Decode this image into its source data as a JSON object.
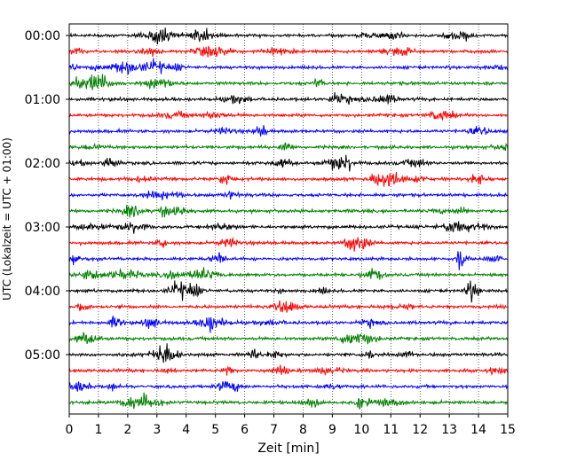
{
  "chart_data": {
    "type": "line",
    "title": "",
    "xlabel": "Zeit  [min]",
    "ylabel": "UTC (Lokalzeit = UTC + 01:00)",
    "xlim": [
      0,
      15
    ],
    "x_ticks": [
      0,
      1,
      2,
      3,
      4,
      5,
      6,
      7,
      8,
      9,
      10,
      11,
      12,
      13,
      14,
      15
    ],
    "grid": "vertical dotted",
    "legend": "none",
    "row_interval_minutes": 15,
    "num_rows": 24,
    "y_tick_labels": [
      "00:00",
      "01:00",
      "02:00",
      "03:00",
      "04:00",
      "05:00"
    ],
    "trace_colors": [
      "#000000",
      "#ff0000",
      "#0000ff",
      "#007f00"
    ]
  }
}
